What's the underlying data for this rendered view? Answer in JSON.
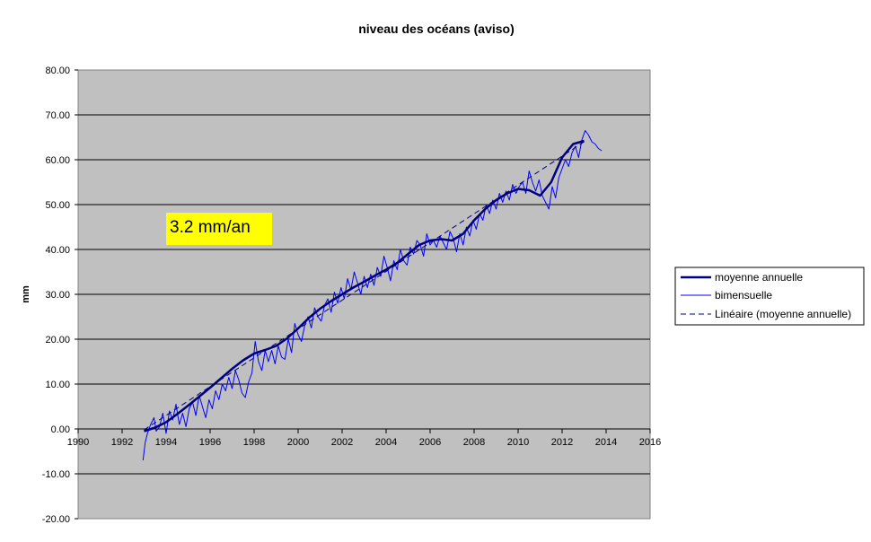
{
  "chart_data": {
    "type": "line",
    "title": "niveau des océans (aviso)",
    "xlabel": "",
    "ylabel": "mm",
    "xlim": [
      1990,
      2016
    ],
    "ylim": [
      -20,
      80
    ],
    "x_ticks": [
      "1990",
      "1992",
      "1994",
      "1996",
      "1998",
      "2000",
      "2002",
      "2004",
      "2006",
      "2008",
      "2010",
      "2012",
      "2014",
      "2016"
    ],
    "y_ticks": [
      "80.00",
      "70.00",
      "60.00",
      "50.00",
      "40.00",
      "30.00",
      "20.00",
      "10.00",
      "0.00",
      "-10.00",
      "-20.00"
    ],
    "grid": true,
    "legend_position": "right",
    "plot_background": "#c0c0c0",
    "annotation": {
      "text": "3.2 mm/an",
      "background": "#ffff00"
    },
    "series": [
      {
        "name": "moyenne annuelle",
        "color": "#000080",
        "style": "thick-solid",
        "x": [
          1993.0,
          1993.5,
          1994.0,
          1994.5,
          1995.0,
          1995.5,
          1996.0,
          1996.5,
          1997.0,
          1997.5,
          1998.0,
          1998.5,
          1999.0,
          1999.5,
          2000.0,
          2000.5,
          2001.0,
          2001.5,
          2002.0,
          2002.5,
          2003.0,
          2003.5,
          2004.0,
          2004.5,
          2005.0,
          2005.5,
          2006.0,
          2006.5,
          2007.0,
          2007.5,
          2008.0,
          2008.5,
          2009.0,
          2009.5,
          2010.0,
          2010.5,
          2011.0,
          2011.5,
          2012.0,
          2012.5,
          2013.0
        ],
        "values": [
          -0.5,
          0.3,
          1.5,
          3.3,
          5.2,
          7.2,
          9.2,
          11.3,
          13.4,
          15.3,
          16.8,
          17.6,
          18.5,
          20.2,
          22.4,
          24.8,
          26.8,
          28.5,
          30.0,
          31.5,
          32.8,
          34.2,
          35.5,
          37.0,
          39.0,
          41.0,
          42.0,
          42.3,
          42.0,
          43.5,
          46.5,
          49.0,
          51.0,
          52.5,
          53.5,
          53.2,
          52.0,
          55.0,
          60.5,
          63.5,
          64.2
        ]
      },
      {
        "name": "bimensuelle",
        "color": "#0000ff",
        "style": "thin-solid",
        "x": [
          1992.95,
          1993.05,
          1993.15,
          1993.3,
          1993.45,
          1993.55,
          1993.7,
          1993.85,
          1994.0,
          1994.15,
          1994.3,
          1994.45,
          1994.6,
          1994.75,
          1994.9,
          1995.05,
          1995.2,
          1995.35,
          1995.5,
          1995.65,
          1995.8,
          1995.95,
          1996.1,
          1996.25,
          1996.4,
          1996.55,
          1996.7,
          1996.85,
          1997.0,
          1997.15,
          1997.3,
          1997.45,
          1997.6,
          1997.75,
          1997.9,
          1998.05,
          1998.2,
          1998.35,
          1998.5,
          1998.65,
          1998.8,
          1998.95,
          1999.1,
          1999.25,
          1999.4,
          1999.55,
          1999.7,
          1999.85,
          2000.0,
          2000.15,
          2000.3,
          2000.45,
          2000.6,
          2000.75,
          2000.9,
          2001.05,
          2001.2,
          2001.35,
          2001.5,
          2001.65,
          2001.8,
          2001.95,
          2002.1,
          2002.25,
          2002.4,
          2002.55,
          2002.7,
          2002.85,
          2003.0,
          2003.15,
          2003.3,
          2003.45,
          2003.6,
          2003.75,
          2003.9,
          2004.05,
          2004.2,
          2004.35,
          2004.5,
          2004.65,
          2004.8,
          2004.95,
          2005.1,
          2005.25,
          2005.4,
          2005.55,
          2005.7,
          2005.85,
          2006.0,
          2006.15,
          2006.3,
          2006.45,
          2006.6,
          2006.75,
          2006.9,
          2007.05,
          2007.2,
          2007.35,
          2007.5,
          2007.65,
          2007.8,
          2007.95,
          2008.1,
          2008.25,
          2008.4,
          2008.55,
          2008.7,
          2008.85,
          2009.0,
          2009.15,
          2009.3,
          2009.45,
          2009.6,
          2009.75,
          2009.9,
          2010.05,
          2010.2,
          2010.35,
          2010.5,
          2010.65,
          2010.8,
          2010.95,
          2011.1,
          2011.25,
          2011.4,
          2011.55,
          2011.7,
          2011.85,
          2012.0,
          2012.15,
          2012.3,
          2012.45,
          2012.6,
          2012.75,
          2012.9,
          2013.05,
          2013.2,
          2013.35,
          2013.5,
          2013.65,
          2013.8
        ],
        "values": [
          -7.0,
          -3.0,
          -1.0,
          1.0,
          2.5,
          -0.5,
          0.5,
          3.5,
          -1.0,
          4.0,
          2.0,
          5.5,
          1.0,
          3.5,
          0.5,
          4.5,
          6.0,
          3.0,
          7.5,
          5.0,
          2.5,
          6.5,
          4.5,
          8.5,
          6.5,
          10.0,
          8.5,
          11.5,
          9.0,
          13.0,
          11.0,
          8.0,
          7.0,
          10.5,
          12.5,
          19.5,
          15.0,
          13.0,
          17.5,
          15.0,
          17.5,
          14.5,
          18.5,
          16.0,
          15.5,
          20.0,
          17.0,
          23.5,
          21.0,
          19.5,
          23.0,
          25.0,
          22.5,
          27.0,
          25.0,
          24.0,
          27.5,
          29.0,
          26.0,
          30.5,
          28.0,
          31.5,
          29.0,
          33.5,
          31.0,
          35.0,
          32.5,
          30.0,
          34.0,
          31.5,
          34.5,
          32.0,
          36.0,
          34.0,
          38.5,
          36.0,
          33.0,
          37.5,
          35.5,
          40.0,
          37.5,
          36.5,
          40.5,
          39.0,
          42.0,
          41.0,
          38.5,
          43.5,
          41.0,
          42.0,
          40.5,
          43.0,
          41.5,
          40.0,
          44.0,
          42.5,
          39.5,
          43.5,
          41.0,
          45.0,
          43.0,
          46.5,
          44.5,
          48.0,
          46.5,
          50.0,
          48.0,
          51.0,
          49.0,
          52.5,
          50.5,
          53.0,
          51.0,
          54.5,
          52.5,
          54.0,
          55.0,
          52.5,
          57.5,
          55.0,
          53.0,
          55.5,
          52.0,
          50.5,
          49.0,
          54.0,
          51.5,
          56.0,
          58.0,
          60.0,
          58.5,
          61.5,
          63.0,
          60.5,
          64.5,
          66.5,
          65.5,
          64.0,
          63.5,
          62.5,
          62.0
        ]
      },
      {
        "name": "Linéaire (moyenne annuelle)",
        "color": "#000080",
        "style": "dashed",
        "x": [
          1993.0,
          2013.0
        ],
        "values": [
          -0.2,
          64.0
        ]
      }
    ]
  }
}
